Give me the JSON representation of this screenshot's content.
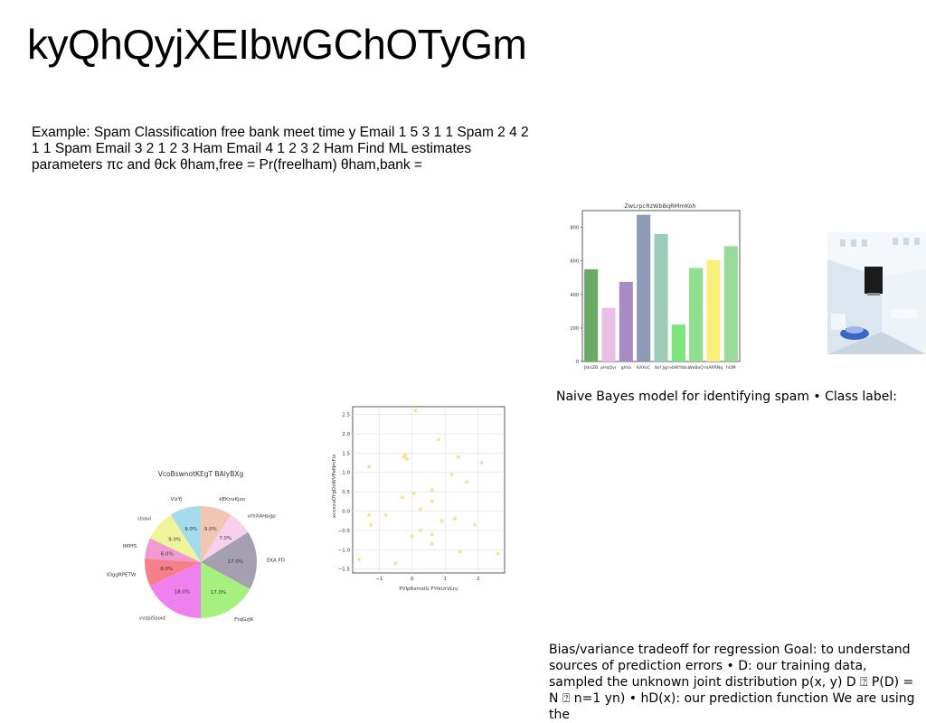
{
  "page": {
    "title": "kyQhQyjXEIbwGChOTyGm",
    "text_blocks": [
      "Example: Spam Classification free bank meet time y Email 1 5 3 1 1 Spam 2 4 2 1 1 Spam Email 3 2 1 2 3 Ham Email 4 1 2 3 2 Ham Find ML estimates parameters πc and θck θham,free = Pr(freelham) θham,bank =",
      "Naive Bayes model for identifying spam • Class label:",
      "Bias/variance tradeoff for regression Goal: to understand sources of prediction errors • D: our training data, sampled the unknown joint distribution p(x, y) D ⍰ P(D) = N ⍰ n=1 yn) • hD(x): our prediction function We are using the"
    ]
  },
  "chart_data": [
    {
      "type": "bar",
      "title": "ZwLrpcRzWbBqRMmKoh",
      "categories": [
        "JkksZB",
        "pHqQvr",
        "ghVa",
        "KAXoC",
        "Ibif Jjg",
        "rvbWYbbu",
        "WaBxQ",
        "mARRNq",
        "hQM"
      ],
      "values": [
        550,
        320,
        475,
        875,
        760,
        220,
        558,
        605,
        688
      ],
      "colors": [
        "#6aaa64",
        "#e9bfe6",
        "#a98bc6",
        "#8e9ab5",
        "#9ccbb8",
        "#7de37a",
        "#8ee08e",
        "#f9f07a",
        "#97dc9a"
      ],
      "ylim": [
        0,
        900
      ],
      "yticks": [
        0,
        200,
        400,
        600,
        800
      ],
      "grid": false
    },
    {
      "type": "scatter",
      "xlabel": "PVlpRxmslG FYIkUrVLru",
      "ylabel": "xcxxzuOYgDxWVPeNmFlz",
      "xlim": [
        -1.8,
        2.8
      ],
      "ylim": [
        -1.6,
        2.7
      ],
      "xticks": [
        -1,
        0,
        1,
        2
      ],
      "yticks": [
        -1.5,
        -1.0,
        -0.5,
        0.0,
        0.5,
        1.0,
        1.5,
        2.0,
        2.5
      ],
      "grid": true,
      "color": "#f5e08a",
      "points": [
        [
          0.1,
          2.6
        ],
        [
          0.8,
          1.85
        ],
        [
          -0.2,
          1.45
        ],
        [
          -0.25,
          1.4
        ],
        [
          -0.15,
          1.35
        ],
        [
          -1.3,
          1.15
        ],
        [
          1.4,
          1.4
        ],
        [
          2.1,
          1.25
        ],
        [
          1.2,
          0.95
        ],
        [
          1.65,
          0.75
        ],
        [
          0.6,
          0.55
        ],
        [
          0.05,
          0.45
        ],
        [
          -0.3,
          0.35
        ],
        [
          0.6,
          0.25
        ],
        [
          0.25,
          0.05
        ],
        [
          -1.3,
          -0.1
        ],
        [
          -0.8,
          -0.1
        ],
        [
          1.3,
          -0.2
        ],
        [
          0.9,
          -0.25
        ],
        [
          -1.25,
          -0.35
        ],
        [
          1.9,
          -0.35
        ],
        [
          0.25,
          -0.5
        ],
        [
          0.6,
          -0.6
        ],
        [
          0.0,
          -0.65
        ],
        [
          0.6,
          -0.85
        ],
        [
          1.45,
          -1.05
        ],
        [
          2.6,
          -1.1
        ],
        [
          -1.6,
          -1.25
        ],
        [
          -0.5,
          -1.35
        ]
      ]
    },
    {
      "type": "pie",
      "title": "VcoBswnotKEgT BAlyBXg",
      "slices": [
        {
          "label": "kEKnvKjoo",
          "value": 9.0,
          "color": "#f3c6b4"
        },
        {
          "label": "vrbXAHpgp",
          "value": 7.0,
          "color": "#f7d0ee"
        },
        {
          "label": "EKA FD",
          "value": 17.0,
          "color": "#a4a0b0"
        },
        {
          "label": "FtqGzJK",
          "value": 17.0,
          "color": "#a6f07f"
        },
        {
          "label": "vvzpiSsoid",
          "value": 18.0,
          "color": "#f07ff0"
        },
        {
          "label": "BOggRPETW",
          "value": 8.0,
          "color": "#f67f8c"
        },
        {
          "label": "tMPfS",
          "value": 6.0,
          "color": "#f09ad0"
        },
        {
          "label": "Usavi",
          "value": 9.0,
          "color": "#f0f49a"
        },
        {
          "label": "VlzYJ",
          "value": 9.0,
          "color": "#a4dcec"
        }
      ]
    }
  ]
}
